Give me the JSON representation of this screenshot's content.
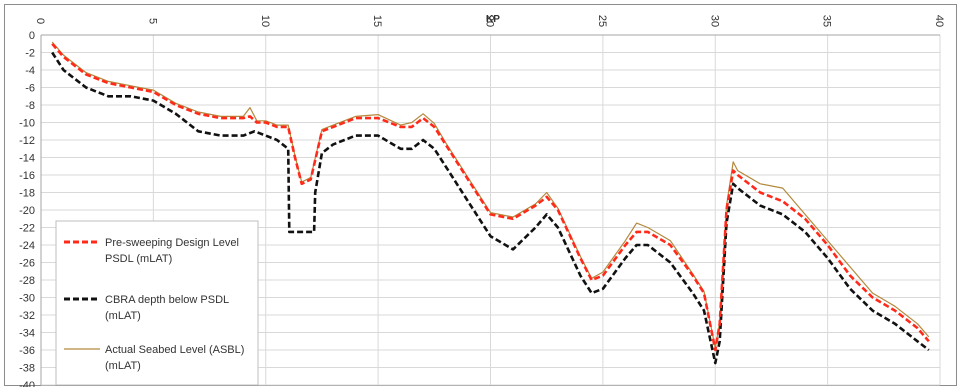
{
  "chart_data": {
    "type": "line",
    "title": "KP",
    "xlim": [
      0,
      40
    ],
    "ylim": [
      -40,
      0
    ],
    "x_ticks": [
      0,
      5,
      10,
      15,
      20,
      25,
      30,
      35,
      40
    ],
    "y_ticks": [
      0,
      -2,
      -4,
      -6,
      -8,
      -10,
      -12,
      -14,
      -16,
      -18,
      -20,
      -22,
      -24,
      -26,
      -28,
      -30,
      -32,
      -34,
      -36,
      -38,
      -40
    ],
    "x_axis_position": "top",
    "grid": true,
    "legend_position": "bottom-left",
    "series": [
      {
        "name": "Pre-sweeping Design Level PSDL (mLAT)",
        "color": "#ff2a1a",
        "style": "dashed",
        "x": [
          0.5,
          1.0,
          2.0,
          3.0,
          4.0,
          5.0,
          6.0,
          7.0,
          8.0,
          9.0,
          9.3,
          9.6,
          10.0,
          10.5,
          11.0,
          11.3,
          11.6,
          12.0,
          12.5,
          13.0,
          14.0,
          15.0,
          16.0,
          16.5,
          17.0,
          17.5,
          18.0,
          19.0,
          20.0,
          21.0,
          22.0,
          22.5,
          23.0,
          24.0,
          24.5,
          25.0,
          26.0,
          26.5,
          27.0,
          28.0,
          29.0,
          29.5,
          30.0,
          30.2,
          30.5,
          30.8,
          31.0,
          32.0,
          33.0,
          34.0,
          35.0,
          36.0,
          37.0,
          38.0,
          39.0,
          39.5
        ],
        "values": [
          -1,
          -2.5,
          -4.5,
          -5.5,
          -6,
          -6.5,
          -8,
          -9,
          -9.5,
          -9.5,
          -9.3,
          -10,
          -10,
          -10.5,
          -10.5,
          -14,
          -17,
          -16.5,
          -11,
          -10.5,
          -9.5,
          -9.5,
          -10.5,
          -10.5,
          -9.5,
          -10.5,
          -12.5,
          -16.5,
          -20.5,
          -21,
          -19.5,
          -18.5,
          -20,
          -25.5,
          -28,
          -27.5,
          -24,
          -22.5,
          -22.5,
          -24,
          -27.5,
          -29.5,
          -36,
          -33,
          -20,
          -15.5,
          -16,
          -18,
          -19,
          -21,
          -24,
          -27.5,
          -30,
          -31.5,
          -33.5,
          -35
        ]
      },
      {
        "name": "CBRA depth below PSDL (mLAT)",
        "color": "#111111",
        "style": "dashed",
        "x": [
          0.5,
          1.0,
          2.0,
          3.0,
          4.0,
          5.0,
          6.0,
          7.0,
          8.0,
          9.0,
          9.5,
          10.0,
          10.5,
          11.0,
          11.05,
          12.15,
          12.2,
          12.5,
          13.0,
          14.0,
          15.0,
          16.0,
          16.5,
          17.0,
          17.5,
          18.0,
          19.0,
          20.0,
          21.0,
          22.0,
          22.5,
          23.0,
          24.0,
          24.5,
          25.0,
          26.0,
          26.5,
          27.0,
          28.0,
          29.0,
          29.5,
          30.0,
          30.2,
          30.5,
          30.8,
          31.0,
          32.0,
          33.0,
          34.0,
          35.0,
          36.0,
          37.0,
          38.0,
          39.0,
          39.5
        ],
        "values": [
          -2,
          -4,
          -6,
          -7,
          -7,
          -7.5,
          -9,
          -11,
          -11.5,
          -11.5,
          -11,
          -11.5,
          -12,
          -13,
          -22.5,
          -22.5,
          -18,
          -13.5,
          -12.5,
          -11.5,
          -11.5,
          -13,
          -13,
          -12,
          -13,
          -15,
          -19,
          -23,
          -24.5,
          -22,
          -20.5,
          -22,
          -27.5,
          -29.5,
          -29,
          -25.5,
          -24,
          -24,
          -26,
          -29.5,
          -31.5,
          -37.5,
          -35,
          -21.5,
          -17,
          -17.5,
          -19.5,
          -20.5,
          -22.5,
          -25.5,
          -29,
          -31.5,
          -33,
          -35,
          -36
        ]
      },
      {
        "name": "Actual Seabed Level (ASBL) (mLAT)",
        "color": "#b3893c",
        "style": "solid",
        "x": [
          0.5,
          1.0,
          2.0,
          3.0,
          4.0,
          5.0,
          6.0,
          7.0,
          8.0,
          9.0,
          9.3,
          9.6,
          10.0,
          10.5,
          11.0,
          11.3,
          11.6,
          12.0,
          12.5,
          13.0,
          14.0,
          15.0,
          16.0,
          16.5,
          17.0,
          17.5,
          18.0,
          19.0,
          20.0,
          21.0,
          22.0,
          22.5,
          23.0,
          24.0,
          24.5,
          25.0,
          26.0,
          26.5,
          27.0,
          28.0,
          29.0,
          29.5,
          30.0,
          30.2,
          30.5,
          30.8,
          31.0,
          32.0,
          33.0,
          34.0,
          35.0,
          36.0,
          37.0,
          38.0,
          39.0,
          39.5
        ],
        "values": [
          -0.8,
          -2.3,
          -4.3,
          -5.3,
          -5.8,
          -6.3,
          -7.8,
          -8.8,
          -9.3,
          -9.3,
          -8.3,
          -9.8,
          -9.8,
          -10.3,
          -10.3,
          -13.8,
          -16.8,
          -16.3,
          -10.8,
          -10.3,
          -9.3,
          -9.1,
          -10.3,
          -10,
          -9,
          -10.1,
          -12.3,
          -16.3,
          -20.3,
          -20.8,
          -19.3,
          -18,
          -19.8,
          -25.3,
          -27.8,
          -27.1,
          -23.5,
          -21.5,
          -22,
          -23.5,
          -27.3,
          -29.3,
          -35.8,
          -32.8,
          -19.5,
          -14.5,
          -15.5,
          -17,
          -17.5,
          -20.5,
          -23.5,
          -26.5,
          -29.5,
          -31,
          -33,
          -34.5
        ]
      }
    ]
  },
  "legend": {
    "entries": [
      {
        "line1": "Pre-sweeping Design Level",
        "line2": "PSDL (mLAT)"
      },
      {
        "line1": "CBRA depth below PSDL",
        "line2": "(mLAT)"
      },
      {
        "line1": "Actual Seabed Level (ASBL)",
        "line2": "(mLAT)"
      }
    ]
  }
}
